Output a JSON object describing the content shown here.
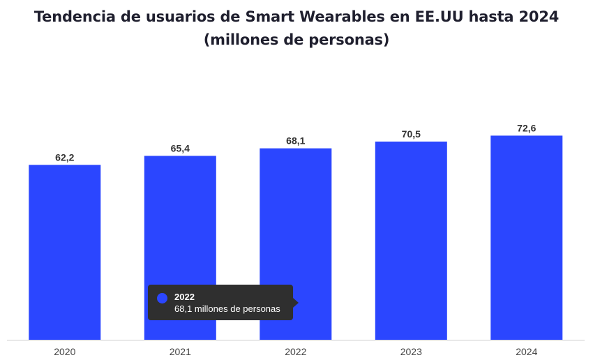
{
  "chart_data": {
    "type": "bar",
    "title_lines": [
      "Tendencia de usuarios de Smart Wearables en EE.UU hasta 2024",
      "(millones de personas)"
    ],
    "categories": [
      "2020",
      "2021",
      "2022",
      "2023",
      "2024"
    ],
    "values": [
      62.2,
      65.4,
      68.1,
      70.5,
      72.6
    ],
    "value_labels": [
      "62,2",
      "65,4",
      "68,1",
      "70,5",
      "72,6"
    ],
    "xlabel": "",
    "ylabel": "",
    "ylim": [
      0,
      80
    ],
    "grid": false,
    "legend": "none",
    "colors": {
      "bar": "#2b46ff",
      "axis": "#cccccc",
      "title": "#1f1f2e",
      "label": "#333333"
    }
  },
  "tooltip": {
    "title": "2022",
    "text": "68,1 millones de personas",
    "swatch_color": "#2b46ff"
  }
}
